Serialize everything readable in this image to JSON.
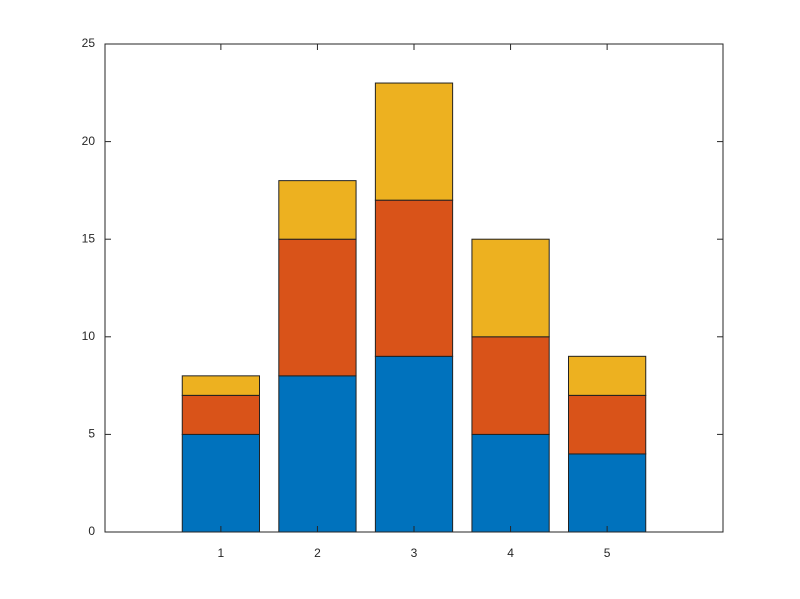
{
  "chart_data": {
    "type": "stacked_bar",
    "x": [
      1,
      2,
      3,
      4,
      5
    ],
    "series": [
      {
        "color": "#0072BD",
        "values": [
          5,
          8,
          9,
          5,
          4
        ]
      },
      {
        "color": "#D95319",
        "values": [
          2,
          7,
          8,
          5,
          3
        ]
      },
      {
        "color": "#EDB120",
        "values": [
          1,
          3,
          6,
          5,
          2
        ]
      }
    ],
    "xlim": [
      -0.2,
      6.2
    ],
    "xticks": [
      1,
      2,
      3,
      4,
      5
    ],
    "ylim": [
      0,
      25
    ],
    "yticks": [
      0,
      5,
      10,
      15,
      20,
      25
    ],
    "bar_width": 0.8,
    "box": true,
    "grid": false
  }
}
